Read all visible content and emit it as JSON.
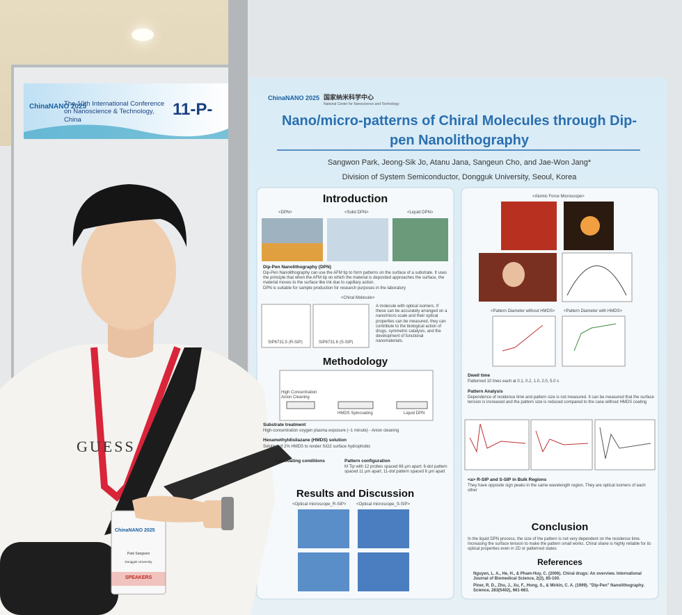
{
  "banner": {
    "logo": "ChinaNANO 2025",
    "conference": "The 10th International Conference on Nanoscience & Technology, China",
    "board": "11-P-"
  },
  "poster": {
    "logo": "ChinaNANO 2025",
    "center_cn": "国家纳米科学中心",
    "center_en": "National Center for Nanoscience and Technology",
    "title": "Nano/micro-patterns of Chiral Molecules through Dip-pen Nanolithography",
    "authors": "Sangwon Park, Jeong-Sik Jo, Atanu Jana, Sangeun Cho, and Jae-Won Jang*",
    "affiliation": "Division of System Semiconductor, Dongguk University, Seoul, Korea",
    "left": {
      "introduction": "Introduction",
      "dpn_labels": [
        "<DPN>",
        "<Solid DPN>",
        "<Liquid DPN>"
      ],
      "dpn_heading": "Dip-Pen Nanolithography (DPN)",
      "dpn_text": "Dip-Pen Nanolithography can use the AFM tip to form patterns on the surface of a substrate. It uses the principle that when the AFM tip on which the material is deposited approaches the surface, the material moves to the surface like ink due to capillary action.",
      "dpn_note": "DPN is suitable for sample production for research purposes in the laboratory",
      "chiral_label": "<Chiral Molecule>",
      "molecules": [
        "SIP6731.5 (R-SIP)",
        "SIP6731.6 (S-SIP)"
      ],
      "chiral_text": "A molecule with optical isomers. If these can be accurately arranged on a nano/micro scale and their optical properties can be measured, they can contribute to the biological action of drugs, symmetric catalysis, and the development of functional nanomaterials.",
      "methodology": "Methodology",
      "steps": [
        "High Concentration Anion Cleaning",
        "HMDS Spincoating",
        "Liquid DPN"
      ],
      "substrate_heading": "Substrate treatment",
      "substrate_text": "High-concentration oxygen plasma exposure (~1 minute) - Anion cleaning",
      "hmds_heading": "Hexamethyldisilazane (HMDS) solution",
      "hmds_text": "Solution of 2% HMDS to render SiO2 surface hydrophobic",
      "coating_heading": "Spincoating conditions",
      "pattern_heading": "Pattern configuration",
      "pattern_text": "M Tip with 12 probes spaced 66 µm apart; 6-dot pattern spaced 11 µm apart; 11-dot pattern spaced 6 µm apart",
      "results": "Results and Discussion",
      "micro_labels": [
        "<Optical microscope_R-SIP>",
        "<Optical microscope_S-SIP>"
      ]
    },
    "right": {
      "afm_label": "<Atomic Force Microscope>",
      "hmds_labels": [
        "<Pattern Diameter without HMDS>",
        "<Pattern Diameter with HMDS>"
      ],
      "dwell_heading": "Dwell time",
      "dwell_text": "Patterned 10 lines each at 0.1, 0.2, 1.0, 2.0, 5.0 s",
      "analysis_heading": "Pattern Analysis",
      "analysis_text": "Dependence of residence time and pattern size is not measured. It can be measured that the surface tension is increased and the pattern size is reduced compared to the case without HMDS coating",
      "cd_heading": "<a> R-SIP and S-SIP in Bulk Regions",
      "cd_text": "They have opposite sign peaks in the same wavelength region. They are optical isomers of each other",
      "conclusion": "Conclusion",
      "conclusion_text": "In the liquid DPN process, the size of the pattern is not very dependent on the residence time. Increasing the surface tension to make the pattern small works. Chiral silane is highly reliable for its optical properties even in 2D or patterned states",
      "references": "References",
      "refs": [
        "Nguyen, L. A., He, H., & Pham-Huy, C. (2006). Chiral drugs: An overview. International Journal of Biomedical Science, 2(2), 85-100.",
        "Piner, R. D., Zhu, J., Xu, F., Hong, S., & Mirkin, C. A. (1999). \"Dip-Pen\" Nanolithography. Science, 283(5402), 661-663."
      ]
    }
  },
  "badge": {
    "logo": "ChinaNANO 2025",
    "name": "Park Sangwon",
    "org": "Dongguk University",
    "role": "SPEAKERS"
  },
  "shirt": "GUESS"
}
